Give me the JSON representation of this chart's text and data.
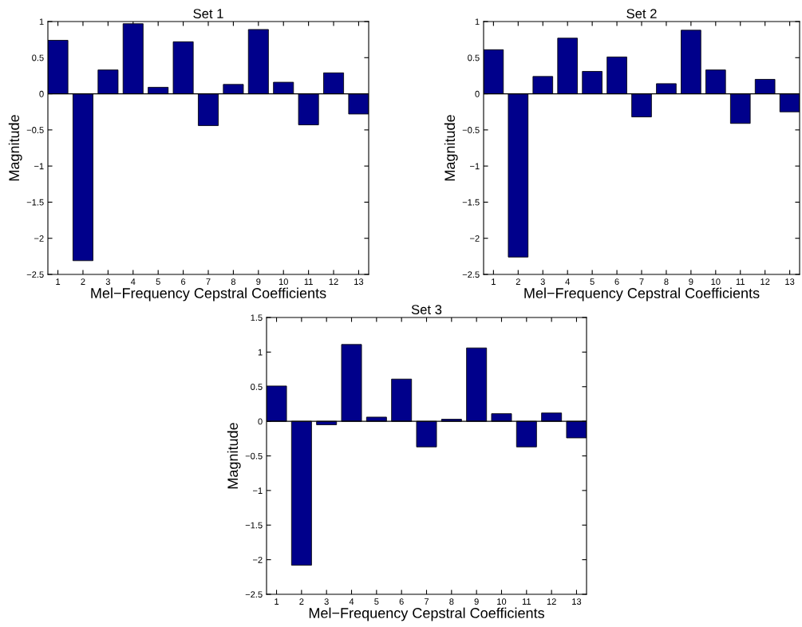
{
  "chart_data": [
    {
      "type": "bar",
      "title": "Set 1",
      "xlabel": "Mel−Frequency Cepstral Coefficients",
      "ylabel": "Magnitude",
      "categories": [
        "1",
        "2",
        "3",
        "4",
        "5",
        "6",
        "7",
        "8",
        "9",
        "10",
        "11",
        "12",
        "13"
      ],
      "color": "#00008b",
      "values": [
        0.74,
        -2.31,
        0.33,
        0.97,
        0.09,
        0.72,
        -0.44,
        0.13,
        0.89,
        0.16,
        -0.43,
        0.29,
        -0.28
      ],
      "ylim": [
        -2.5,
        1
      ],
      "yticks": [
        {
          "value": -2.5,
          "label": "−2.5"
        },
        {
          "value": -2,
          "label": "−2"
        },
        {
          "value": -1.5,
          "label": "−1.5"
        },
        {
          "value": -1,
          "label": "−1"
        },
        {
          "value": -0.5,
          "label": "−0.5"
        },
        0,
        0.5,
        1
      ],
      "ref_lines": [
        {
          "axis": "y",
          "value": 0,
          "color": "#000000"
        }
      ],
      "grid": false
    },
    {
      "type": "bar",
      "title": "Set 2",
      "xlabel": "Mel−Frequency Cepstral Coefficients",
      "ylabel": "Magnitude",
      "categories": [
        "1",
        "2",
        "3",
        "4",
        "5",
        "6",
        "7",
        "8",
        "9",
        "10",
        "11",
        "12",
        "13"
      ],
      "color": "#00008b",
      "values": [
        0.61,
        -2.26,
        0.24,
        0.77,
        0.31,
        0.51,
        -0.32,
        0.14,
        0.88,
        0.33,
        -0.41,
        0.2,
        -0.25
      ],
      "ylim": [
        -2.5,
        1
      ],
      "yticks": [
        {
          "value": -2.5,
          "label": "−2.5"
        },
        {
          "value": -2,
          "label": "−2"
        },
        {
          "value": -1.5,
          "label": "−1.5"
        },
        {
          "value": -1,
          "label": "−1"
        },
        {
          "value": -0.5,
          "label": "−0.5"
        },
        0,
        0.5,
        1
      ],
      "ref_lines": [
        {
          "axis": "y",
          "value": 0,
          "color": "#000000"
        }
      ],
      "grid": false
    },
    {
      "type": "bar",
      "title": "Set 3",
      "xlabel": "Mel−Frequency Cepstral Coefficients",
      "ylabel": "Magnitude",
      "categories": [
        "1",
        "2",
        "3",
        "4",
        "5",
        "6",
        "7",
        "8",
        "9",
        "10",
        "11",
        "12",
        "13"
      ],
      "color": "#00008b",
      "values": [
        0.51,
        -2.08,
        -0.05,
        1.11,
        0.06,
        0.61,
        -0.37,
        0.03,
        1.06,
        0.11,
        -0.37,
        0.12,
        -0.24
      ],
      "ylim": [
        -2.5,
        1.5
      ],
      "yticks": [
        {
          "value": -2.5,
          "label": "−2.5"
        },
        {
          "value": -2,
          "label": "−2"
        },
        {
          "value": -1.5,
          "label": "−1.5"
        },
        {
          "value": -1,
          "label": "−1"
        },
        {
          "value": -0.5,
          "label": "−0.5"
        },
        0,
        0.5,
        1,
        1.5
      ],
      "ref_lines": [
        {
          "axis": "y",
          "value": 0,
          "color": "#000000"
        }
      ],
      "grid": false
    }
  ]
}
